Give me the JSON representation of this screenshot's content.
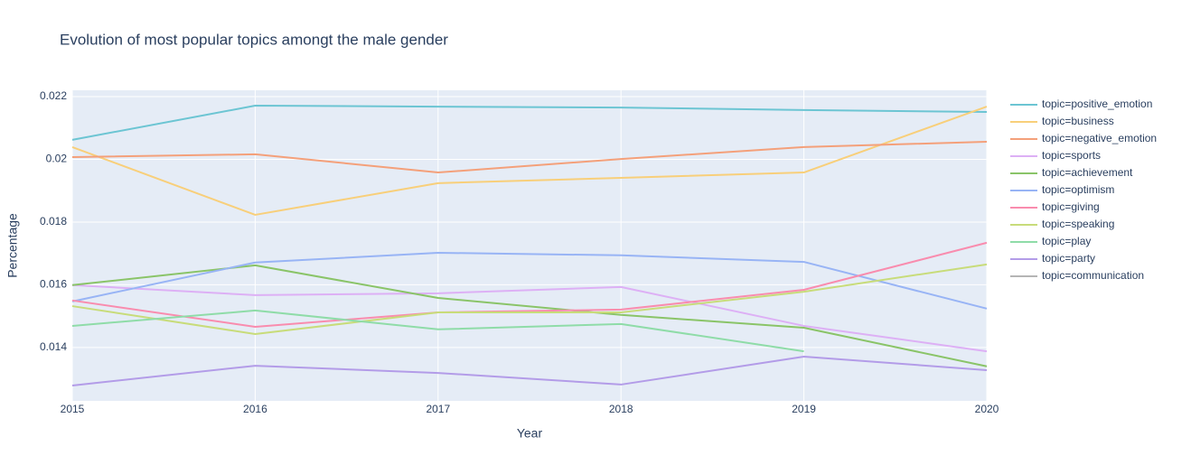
{
  "chart_data": {
    "type": "line",
    "title": "Evolution of most popular topics amongt the male gender",
    "x_label": "Year",
    "y_label": "Percentage",
    "x": [
      2015,
      2016,
      2017,
      2018,
      2019,
      2020
    ],
    "xlim": [
      2015,
      2020
    ],
    "xticks": [
      2015,
      2016,
      2017,
      2018,
      2019,
      2020
    ],
    "ylim": [
      0.0123,
      0.0222
    ],
    "yticks": [
      0.014,
      0.016,
      0.018,
      0.02,
      0.022
    ],
    "grid": true,
    "legend": "right",
    "series": [
      {
        "name": "topic=positive_emotion",
        "color": "#6cc5d3",
        "values": [
          0.02062,
          0.02171,
          0.02168,
          0.02165,
          0.02157,
          0.02151
        ]
      },
      {
        "name": "topic=business",
        "color": "#f8cf7a",
        "values": [
          0.02039,
          0.01823,
          0.01924,
          0.01941,
          0.01958,
          0.02168
        ]
      },
      {
        "name": "topic=negative_emotion",
        "color": "#f4a07a",
        "values": [
          0.02007,
          0.02016,
          0.01958,
          0.02001,
          0.02039,
          0.02056
        ]
      },
      {
        "name": "topic=sports",
        "color": "#ddb0f5",
        "values": [
          0.01599,
          0.01567,
          0.01573,
          0.01593,
          0.01469,
          0.01388
        ]
      },
      {
        "name": "topic=achievement",
        "color": "#8ac468",
        "values": [
          0.01599,
          0.01662,
          0.01558,
          0.01504,
          0.01463,
          0.0134
        ]
      },
      {
        "name": "topic=optimism",
        "color": "#98b4f5",
        "values": [
          0.01547,
          0.01671,
          0.01702,
          0.01694,
          0.01673,
          0.01524
        ]
      },
      {
        "name": "topic=giving",
        "color": "#f98cae",
        "values": [
          0.0155,
          0.01466,
          0.01512,
          0.01521,
          0.01584,
          0.01734
        ]
      },
      {
        "name": "topic=speaking",
        "color": "#c8dc7a",
        "values": [
          0.01532,
          0.01443,
          0.01512,
          0.01512,
          0.01578,
          0.01665
        ]
      },
      {
        "name": "topic=play",
        "color": "#8fdca8",
        "values": [
          0.01469,
          0.01518,
          0.01458,
          0.01475,
          0.01388,
          null
        ]
      },
      {
        "name": "topic=party",
        "color": "#b39ce8",
        "values": [
          0.01279,
          0.01342,
          0.01319,
          0.01282,
          0.01371,
          0.01328
        ]
      },
      {
        "name": "topic=communication",
        "color": "#b5b5b5",
        "values": [
          null,
          null,
          null,
          null,
          null,
          null
        ]
      }
    ]
  }
}
